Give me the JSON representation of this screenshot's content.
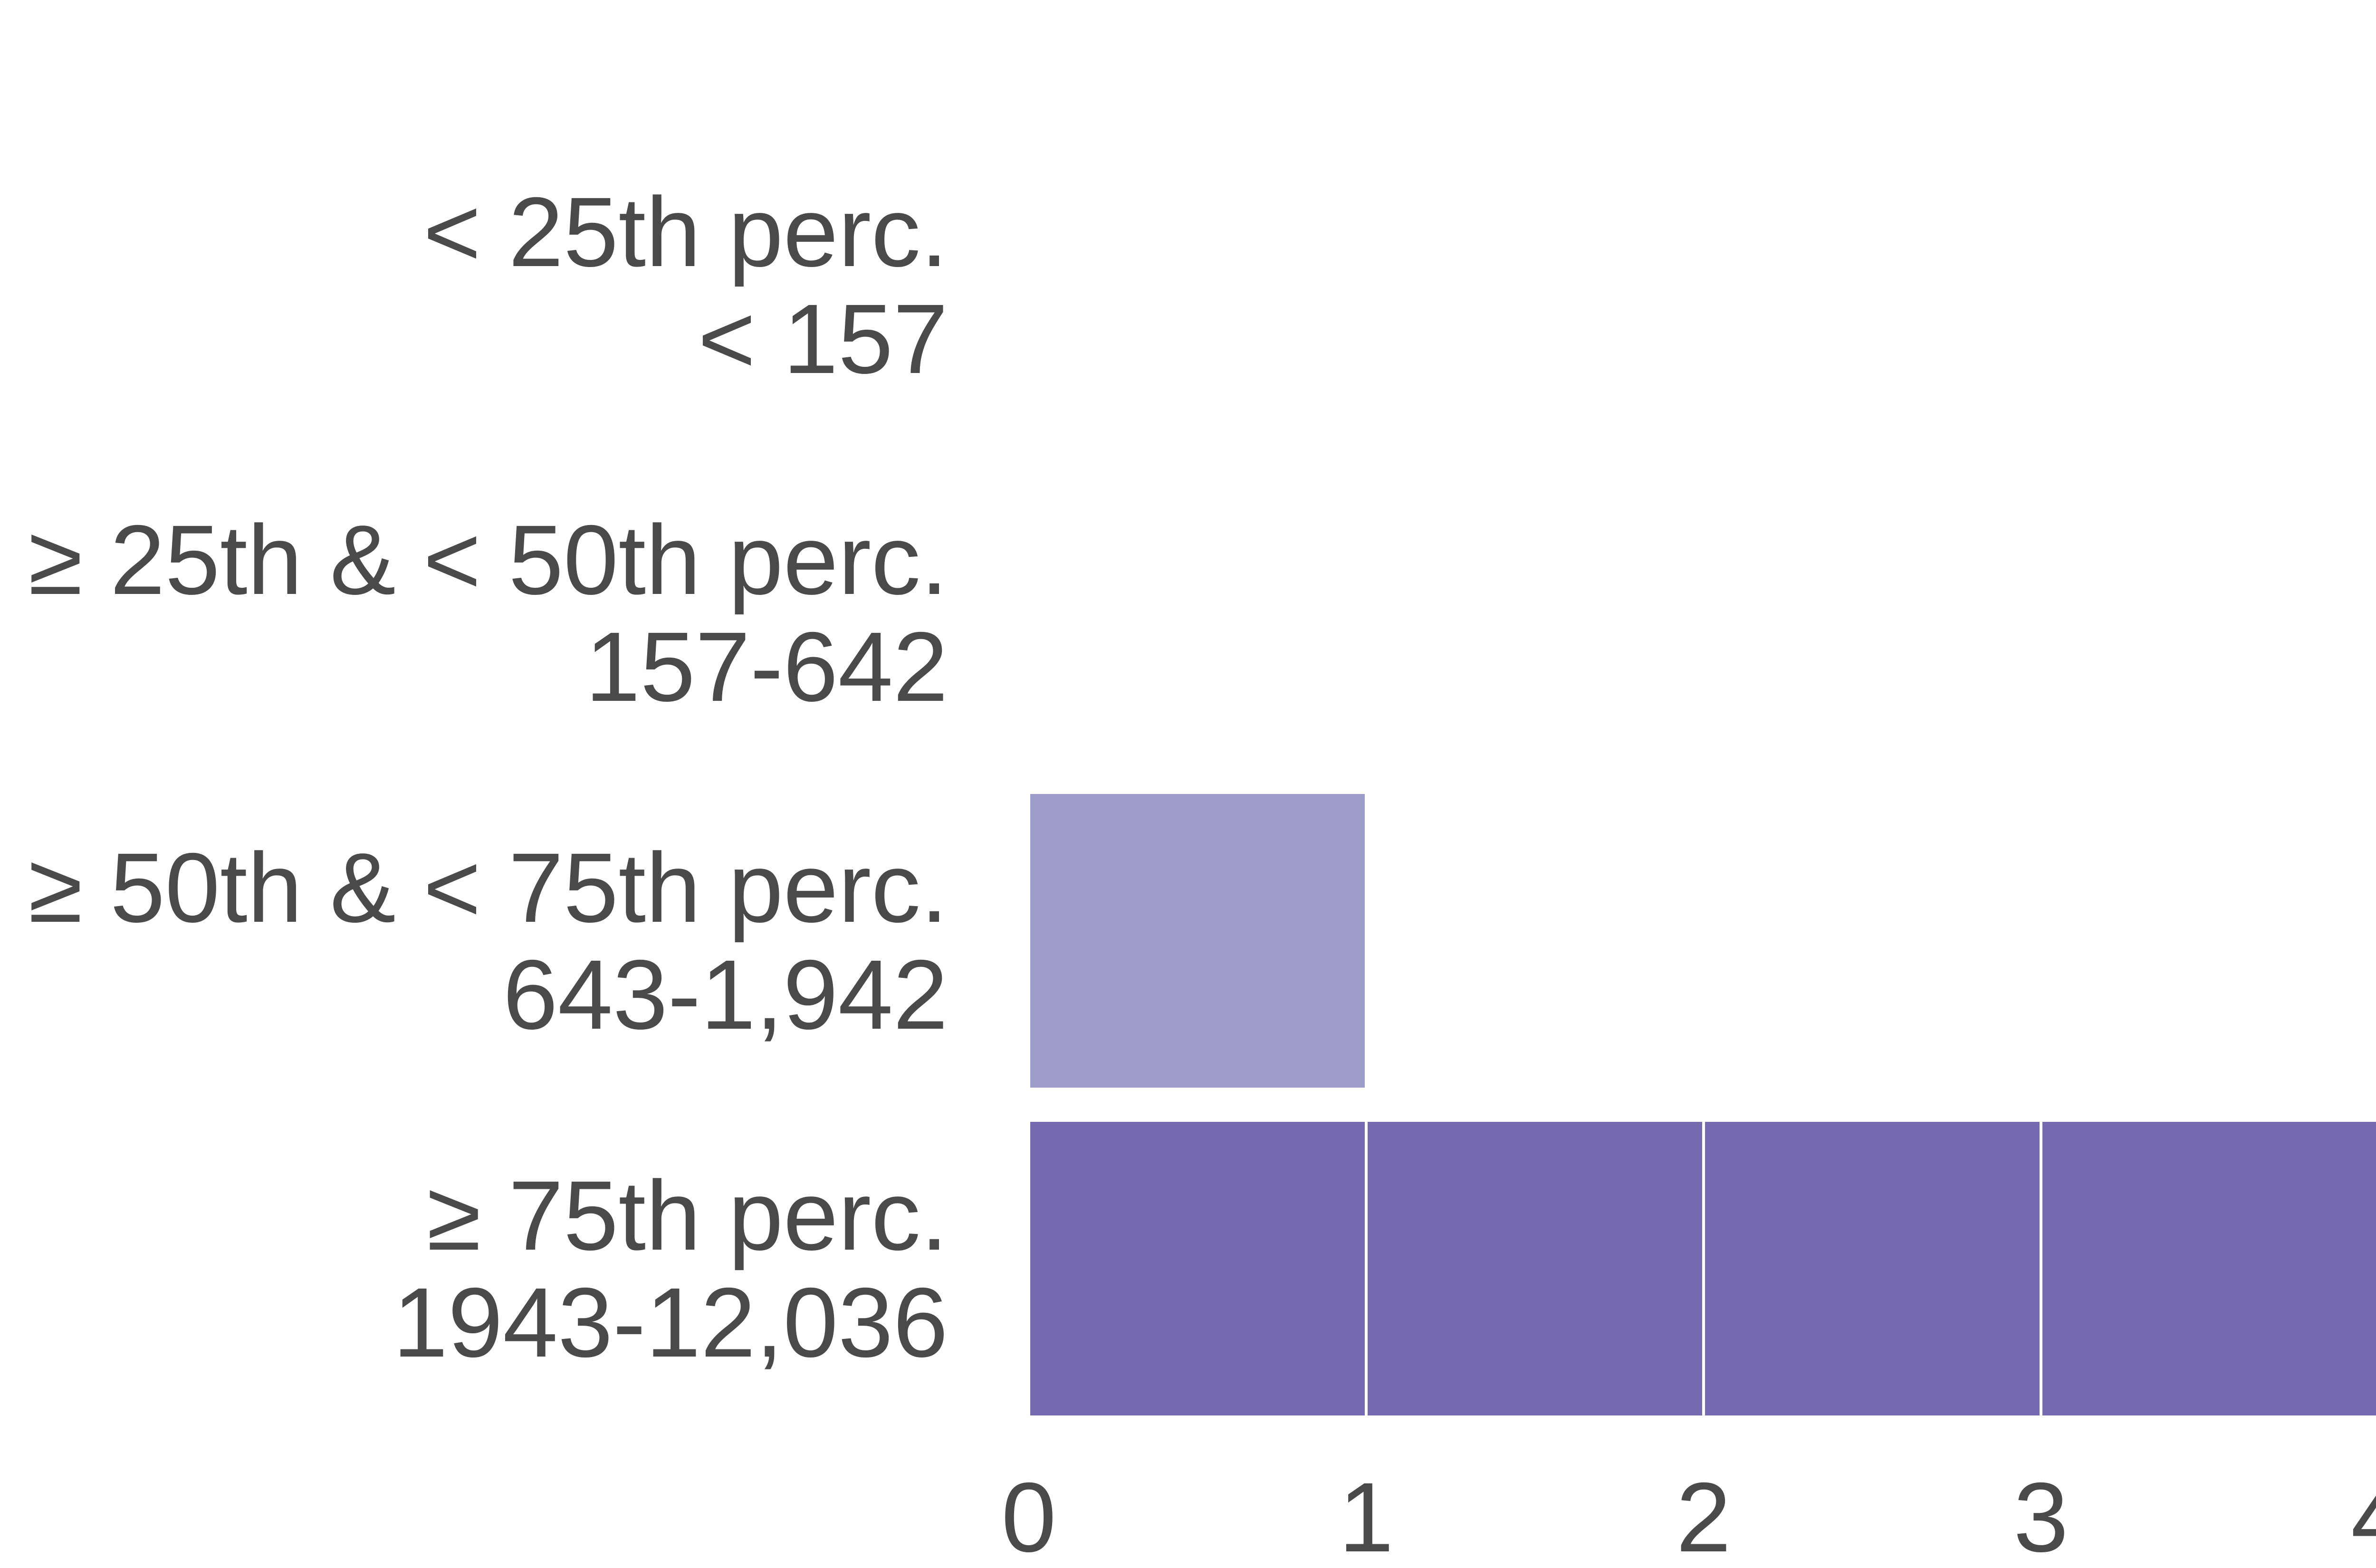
{
  "chart_data": {
    "type": "bar",
    "orientation": "horizontal",
    "stacked_units": true,
    "title": "",
    "xlabel": "",
    "ylabel": "",
    "xlim": [
      0,
      4
    ],
    "x_ticks": [
      "0",
      "1",
      "2",
      "3",
      "4"
    ],
    "grid": false,
    "legend": "none",
    "categories": [
      {
        "line1": "< 25th perc.",
        "line2": "< 157",
        "value": 0,
        "color": "#9e9cc9"
      },
      {
        "line1": "≥ 25th & < 50th perc.",
        "line2": "157-642",
        "value": 0,
        "color": "#9e9cc9"
      },
      {
        "line1": "≥ 50th & < 75th perc.",
        "line2": "643-1,942",
        "value": 1,
        "color": "#9e9cc9"
      },
      {
        "line1": "≥ 75th perc.",
        "line2": "1943-12,036",
        "value": 4,
        "color": "#756bb0"
      }
    ]
  }
}
